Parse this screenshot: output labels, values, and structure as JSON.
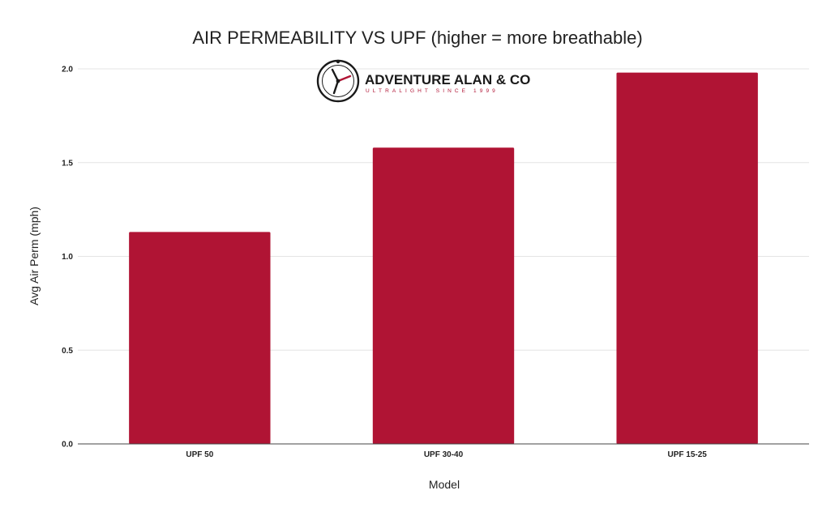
{
  "chart_data": {
    "type": "bar",
    "title": "AIR PERMEABILITY VS UPF (higher = more breathable)",
    "xlabel": "Model",
    "ylabel": "Avg Air Perm (mph)",
    "categories": [
      "UPF 50",
      "UPF 30-40",
      "UPF 15-25"
    ],
    "values": [
      1.13,
      1.58,
      1.98
    ],
    "ylim": [
      0,
      2.0
    ],
    "yticks": [
      "0.0",
      "0.5",
      "1.0",
      "1.5",
      "2.0"
    ],
    "grid": true,
    "legend": "none",
    "bar_color": "#b01434"
  },
  "logo": {
    "name": "ADVENTURE ALAN & CO",
    "tagline": "ULTRALIGHT SINCE 1999",
    "accent_color": "#b01434"
  }
}
